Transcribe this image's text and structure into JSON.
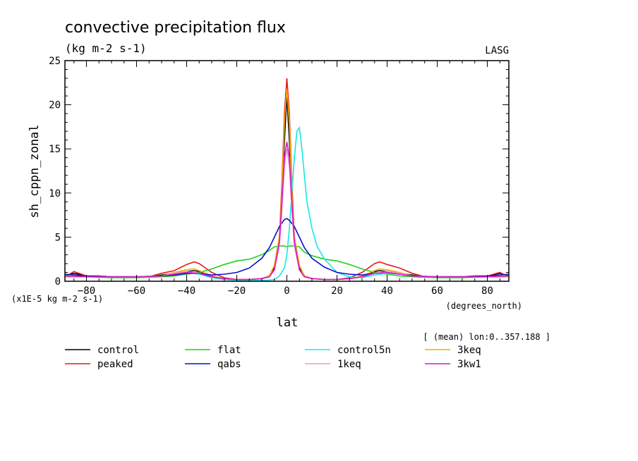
{
  "chart_data": {
    "type": "line",
    "title": "convective precipitation flux",
    "subtitle": "(kg m-2 s-1)",
    "source_label": "LASG",
    "xlabel": "lat",
    "xunit": "(degrees_north)",
    "ylabel": "sh_cppn_zonal",
    "yunit": "(x1E-5 kg m-2 s-1)",
    "mean_note": "[ (mean) lon:0..357.188 ]",
    "xlim": [
      -88.6,
      88.6
    ],
    "ylim": [
      0,
      25
    ],
    "x_ticks": [
      -80,
      -60,
      -40,
      -20,
      0,
      20,
      40,
      60,
      80
    ],
    "y_ticks": [
      0,
      5,
      10,
      15,
      20,
      25
    ],
    "grid": false,
    "legend_position": "bottom",
    "series": [
      {
        "name": "control",
        "color": "#000000",
        "x": [
          -88.6,
          -85,
          -80,
          -75,
          -70,
          -65,
          -60,
          -55,
          -50,
          -45,
          -40,
          -37,
          -35,
          -30,
          -25,
          -20,
          -15,
          -10,
          -7,
          -5,
          -3,
          -2,
          -1,
          0,
          1,
          2,
          3,
          5,
          7,
          10,
          15,
          20,
          25,
          30,
          35,
          37,
          40,
          45,
          50,
          55,
          60,
          65,
          70,
          75,
          80,
          85,
          88.6
        ],
        "y": [
          0.6,
          0.9,
          0.6,
          0.6,
          0.5,
          0.5,
          0.5,
          0.5,
          0.7,
          0.9,
          1.1,
          1.2,
          1.1,
          0.5,
          0.3,
          0.2,
          0.2,
          0.3,
          0.6,
          1.5,
          4.5,
          9,
          16,
          21,
          16,
          9,
          4.5,
          1.5,
          0.6,
          0.3,
          0.2,
          0.2,
          0.3,
          0.5,
          1.1,
          1.2,
          1.1,
          0.9,
          0.7,
          0.5,
          0.5,
          0.5,
          0.5,
          0.6,
          0.6,
          0.9,
          0.6
        ]
      },
      {
        "name": "peaked",
        "color": "#e8181c",
        "x": [
          -88.6,
          -85,
          -80,
          -75,
          -70,
          -65,
          -60,
          -55,
          -50,
          -45,
          -40,
          -37,
          -35,
          -30,
          -25,
          -20,
          -15,
          -10,
          -7,
          -5,
          -3,
          -2,
          -1,
          0,
          1,
          2,
          3,
          5,
          7,
          10,
          15,
          20,
          25,
          30,
          35,
          37,
          40,
          45,
          50,
          55,
          60,
          65,
          70,
          75,
          80,
          85,
          88.6
        ],
        "y": [
          0.5,
          1.1,
          0.6,
          0.6,
          0.5,
          0.5,
          0.5,
          0.5,
          0.9,
          1.2,
          1.9,
          2.2,
          2.0,
          1.0,
          0.4,
          0.2,
          0.2,
          0.3,
          0.6,
          1.8,
          5,
          11,
          19,
          23,
          19,
          11,
          5,
          1.8,
          0.6,
          0.3,
          0.2,
          0.2,
          0.4,
          1.0,
          2.0,
          2.2,
          1.9,
          1.5,
          0.9,
          0.5,
          0.5,
          0.5,
          0.5,
          0.6,
          0.6,
          1.0,
          0.5
        ]
      },
      {
        "name": "flat",
        "color": "#1fd11f",
        "x": [
          -88.6,
          -80,
          -70,
          -60,
          -50,
          -45,
          -40,
          -35,
          -30,
          -25,
          -20,
          -15,
          -10,
          -7,
          -5,
          -3,
          -1,
          0,
          1,
          3,
          5,
          7,
          10,
          15,
          20,
          25,
          30,
          35,
          40,
          45,
          50,
          60,
          70,
          80,
          88.6
        ],
        "y": [
          0.5,
          0.5,
          0.4,
          0.4,
          0.5,
          0.6,
          0.8,
          1.0,
          1.4,
          1.9,
          2.3,
          2.5,
          3.0,
          3.5,
          3.9,
          4.0,
          4.0,
          3.9,
          4.0,
          4.0,
          3.9,
          3.3,
          2.9,
          2.5,
          2.3,
          1.9,
          1.4,
          1.0,
          0.8,
          0.6,
          0.5,
          0.4,
          0.4,
          0.5,
          0.5
        ]
      },
      {
        "name": "control5n",
        "color": "#18e6e6",
        "x": [
          -88.6,
          -80,
          -70,
          -60,
          -50,
          -45,
          -40,
          -35,
          -30,
          -25,
          -20,
          -15,
          -10,
          -8,
          -5,
          -3,
          -1,
          0,
          1,
          2,
          3,
          4,
          5,
          6,
          7,
          8,
          10,
          12,
          15,
          20,
          25,
          30,
          35,
          40,
          45,
          50,
          60,
          70,
          80,
          88.6
        ],
        "y": [
          0.6,
          0.6,
          0.5,
          0.5,
          0.6,
          0.8,
          1.0,
          0.8,
          0.4,
          0.2,
          0.1,
          0.1,
          0.1,
          0.1,
          0.2,
          0.6,
          1.5,
          3,
          6,
          10,
          14,
          17,
          17.4,
          15,
          12,
          9,
          6,
          4,
          2.5,
          1.0,
          0.5,
          0.4,
          0.7,
          0.9,
          0.8,
          0.6,
          0.5,
          0.5,
          0.6,
          0.6
        ]
      },
      {
        "name": "3keq",
        "color": "#f0b000",
        "x": [
          -88.6,
          -80,
          -70,
          -60,
          -50,
          -45,
          -40,
          -37,
          -35,
          -30,
          -25,
          -20,
          -15,
          -10,
          -7,
          -5,
          -3,
          -2,
          -1,
          0,
          1,
          2,
          3,
          5,
          7,
          10,
          15,
          20,
          25,
          30,
          35,
          37,
          40,
          45,
          50,
          60,
          70,
          80,
          88.6
        ],
        "y": [
          0.5,
          0.6,
          0.5,
          0.5,
          0.6,
          1.0,
          1.3,
          1.4,
          1.2,
          0.6,
          0.3,
          0.2,
          0.2,
          0.3,
          0.6,
          1.8,
          5,
          10,
          18,
          21.8,
          18,
          10,
          5,
          1.8,
          0.6,
          0.3,
          0.2,
          0.2,
          0.3,
          0.6,
          1.2,
          1.4,
          1.3,
          1.0,
          0.6,
          0.5,
          0.5,
          0.6,
          0.5
        ]
      },
      {
        "name": "qabs",
        "color": "#0a10c8",
        "x": [
          -88.6,
          -80,
          -70,
          -60,
          -50,
          -45,
          -40,
          -35,
          -30,
          -25,
          -20,
          -15,
          -10,
          -7,
          -5,
          -3,
          -1,
          0,
          1,
          3,
          5,
          7,
          10,
          15,
          20,
          25,
          30,
          35,
          40,
          45,
          50,
          60,
          70,
          80,
          88.6
        ],
        "y": [
          0.8,
          0.6,
          0.5,
          0.5,
          0.6,
          0.7,
          0.9,
          0.9,
          0.7,
          0.8,
          1.0,
          1.5,
          2.6,
          3.8,
          5.0,
          6.2,
          7.0,
          7.1,
          6.9,
          6.2,
          5.0,
          3.8,
          2.6,
          1.6,
          1.0,
          0.8,
          0.7,
          0.9,
          1.0,
          0.8,
          0.6,
          0.5,
          0.5,
          0.6,
          0.8
        ]
      },
      {
        "name": "1keq",
        "color": "#e89ad8",
        "x": [
          -88.6,
          -80,
          -70,
          -60,
          -50,
          -45,
          -40,
          -35,
          -30,
          -25,
          -20,
          -15,
          -10,
          -7,
          -5,
          -3,
          -2,
          -1,
          0,
          1,
          2,
          3,
          5,
          7,
          10,
          15,
          20,
          25,
          30,
          35,
          40,
          45,
          50,
          60,
          70,
          80,
          88.6
        ],
        "y": [
          0.6,
          0.5,
          0.5,
          0.5,
          0.6,
          0.9,
          1.1,
          0.9,
          0.5,
          0.3,
          0.2,
          0.2,
          0.3,
          0.5,
          1.3,
          4,
          8,
          13,
          15,
          13,
          8,
          4,
          1.3,
          0.5,
          0.3,
          0.2,
          0.2,
          0.3,
          0.5,
          0.9,
          1.1,
          0.9,
          0.6,
          0.5,
          0.5,
          0.5,
          0.6
        ]
      },
      {
        "name": "3kw1",
        "color": "#d818c8",
        "x": [
          -88.6,
          -80,
          -70,
          -60,
          -50,
          -45,
          -40,
          -35,
          -30,
          -25,
          -20,
          -15,
          -10,
          -7,
          -5,
          -3,
          -2,
          -1,
          0,
          1,
          2,
          3,
          5,
          7,
          10,
          15,
          20,
          25,
          30,
          35,
          40,
          45,
          50,
          60,
          70,
          80,
          88.6
        ],
        "y": [
          0.6,
          0.5,
          0.5,
          0.5,
          0.6,
          0.8,
          1.0,
          0.9,
          0.5,
          0.3,
          0.2,
          0.2,
          0.3,
          0.5,
          1.3,
          4.5,
          9,
          14,
          15.8,
          14,
          9,
          4.5,
          1.3,
          0.5,
          0.3,
          0.2,
          0.2,
          0.3,
          0.5,
          0.9,
          1.0,
          0.8,
          0.6,
          0.5,
          0.5,
          0.5,
          0.6
        ]
      }
    ],
    "legend_order": [
      "control",
      "flat",
      "control5n",
      "3keq",
      "peaked",
      "qabs",
      "1keq",
      "3kw1"
    ]
  }
}
